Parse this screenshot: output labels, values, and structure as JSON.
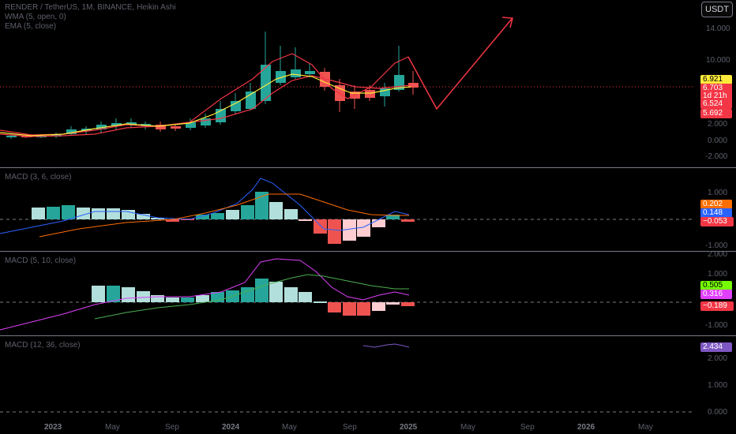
{
  "header": {
    "symbol_line": "RENDER / TetherUS, 1M, BINANCE, Heikin Ashi",
    "wma_line": "WMA (5, open, 0)",
    "ema_line": "EMA (5, close)",
    "currency_button": "USDT"
  },
  "price_axis": [
    "14.000",
    "10.000",
    "2.000",
    "0.000",
    "-2.000"
  ],
  "price_tags": {
    "current": "6.921",
    "close": "6.703",
    "countdown": "1d 21h",
    "wma": "6.524",
    "ema": "5.692"
  },
  "macd1": {
    "title": "MACD (3, 6, close)",
    "axis": [
      "1.000",
      "-1.000"
    ],
    "tags": {
      "signal": "0.202",
      "macd": "0.148",
      "hist": "−0.053"
    }
  },
  "macd2": {
    "title": "MACD (5, 10, close)",
    "axis": [
      "2.000",
      "1.000",
      "-1.000"
    ],
    "tags": {
      "signal": "0.505",
      "macd": "0.316",
      "hist": "−0.189"
    }
  },
  "macd3": {
    "title": "MACD (12, 36, close)",
    "axis": [
      "2.000",
      "1.000",
      "0.000"
    ],
    "tags": {
      "value": "2.434"
    }
  },
  "time_axis": [
    "2023",
    "May",
    "Sep",
    "2024",
    "May",
    "Sep",
    "2025",
    "May",
    "Sep",
    "2026",
    "May"
  ],
  "colors": {
    "up": "#26a69a",
    "down": "#ef5350",
    "up_light": "#b2dfdb",
    "down_light": "#ffcdd2",
    "wma": "#f23645",
    "ema": "#ffeb3b",
    "macd_blue": "#2962ff",
    "signal_orange": "#ff6d00",
    "macd_purple": "#e040fb",
    "signal_green": "#76ff03",
    "macd3_purple": "#7e57c2"
  }
}
